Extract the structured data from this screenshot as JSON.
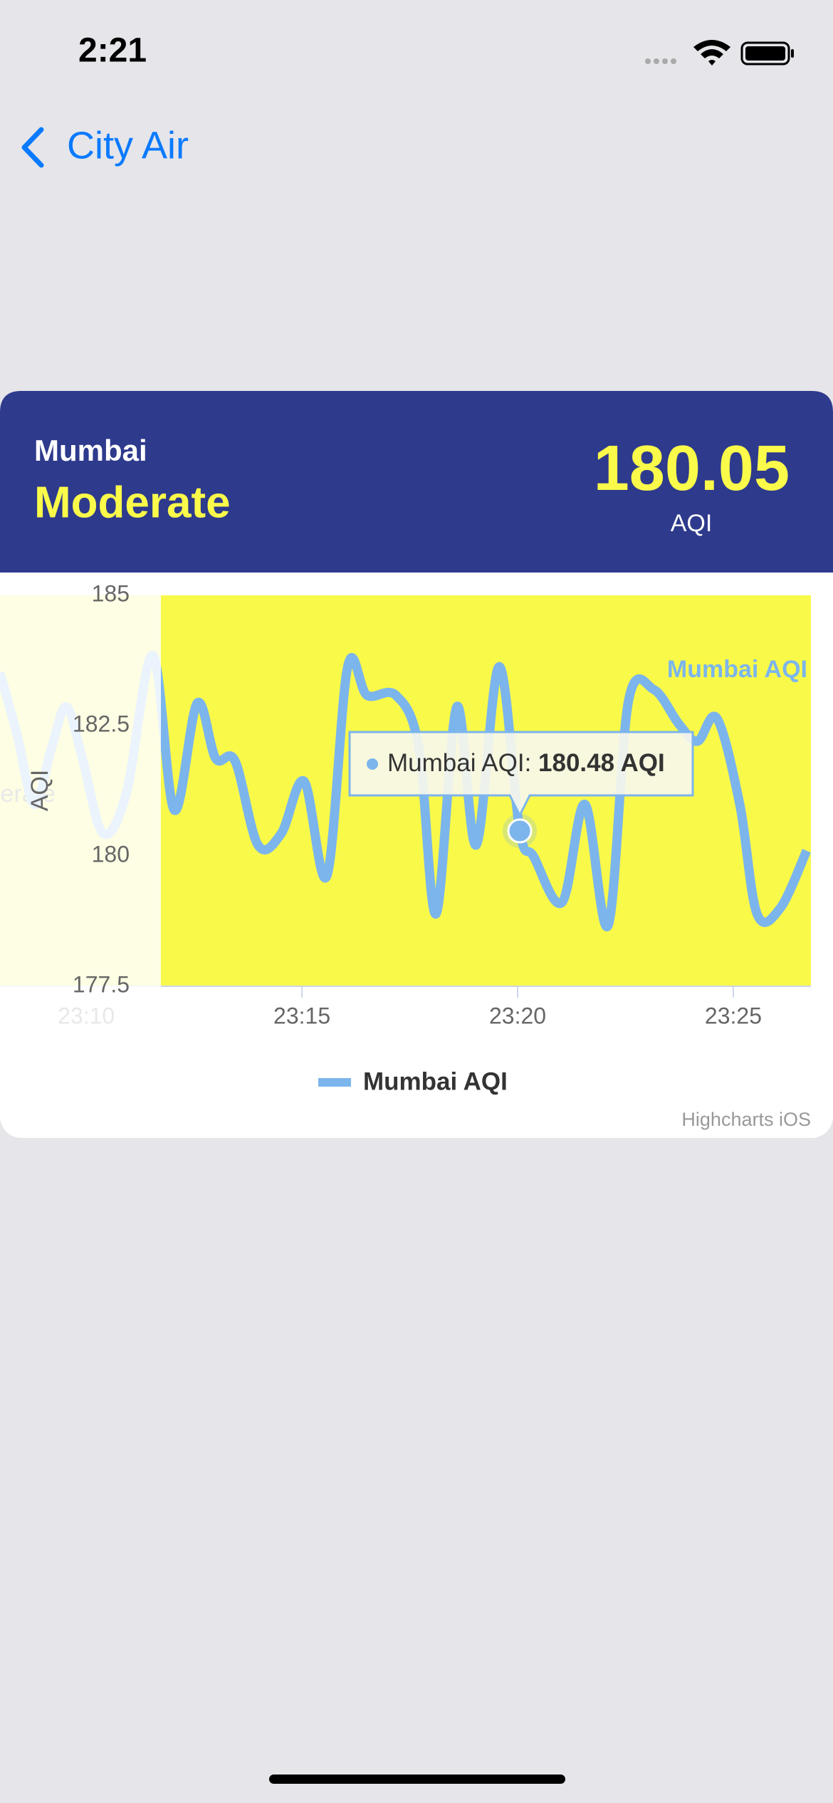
{
  "status_bar": {
    "time": "2:21"
  },
  "nav": {
    "back": "City Air"
  },
  "card": {
    "city": "Mumbai",
    "category": "Moderate",
    "aqi": 180.05,
    "aqi_unit": "AQI"
  },
  "chart_data": {
    "type": "line",
    "y_label": "AQI",
    "plot_band": {
      "label": "Moderate",
      "color": "#f9f94a"
    },
    "x": [
      1388.0,
      1388.4,
      1388.8,
      1389.2,
      1389.54,
      1389.91,
      1390.39,
      1390.93,
      1391.54,
      1392.04,
      1392.57,
      1393.0,
      1393.45,
      1393.98,
      1394.52,
      1395.05,
      1395.58,
      1396.06,
      1396.51,
      1397.18,
      1397.71,
      1398.11,
      1398.59,
      1399.04,
      1399.57,
      1400.05,
      1400.37,
      1401.03,
      1401.56,
      1402.1,
      1402.57,
      1403.16,
      1403.74,
      1404.17,
      1404.62,
      1405.15,
      1405.55,
      1406.09,
      1406.7
    ],
    "series": [
      {
        "name": "Mumbai AQI",
        "color": "#7cb5ec",
        "values": [
          183.52,
          182.31,
          180.99,
          182.09,
          182.86,
          181.87,
          180.43,
          181.21,
          183.85,
          180.88,
          182.93,
          181.87,
          181.82,
          180.21,
          180.43,
          181.43,
          179.62,
          183.63,
          183.08,
          183.08,
          182.09,
          178.89,
          182.86,
          180.21,
          183.63,
          180.48,
          179.99,
          179.11,
          180.99,
          178.67,
          182.97,
          183.19,
          182.53,
          182.2,
          182.64,
          180.99,
          178.89,
          179.0,
          180.1
        ]
      }
    ],
    "xlim": [
      1388,
      1406.8
    ],
    "xticks": [
      {
        "value": 1390,
        "label": "23:10"
      },
      {
        "value": 1395,
        "label": "23:15"
      },
      {
        "value": 1400,
        "label": "23:20"
      },
      {
        "value": 1405,
        "label": "23:25"
      }
    ],
    "ylim": [
      177.5,
      185
    ],
    "yticks": [
      177.5,
      180,
      182.5,
      185
    ],
    "tooltip": {
      "point": 25,
      "label": "Mumbai AQI:",
      "value_label": "180.48 AQI"
    },
    "legend": true,
    "credits": "Highcharts iOS"
  }
}
